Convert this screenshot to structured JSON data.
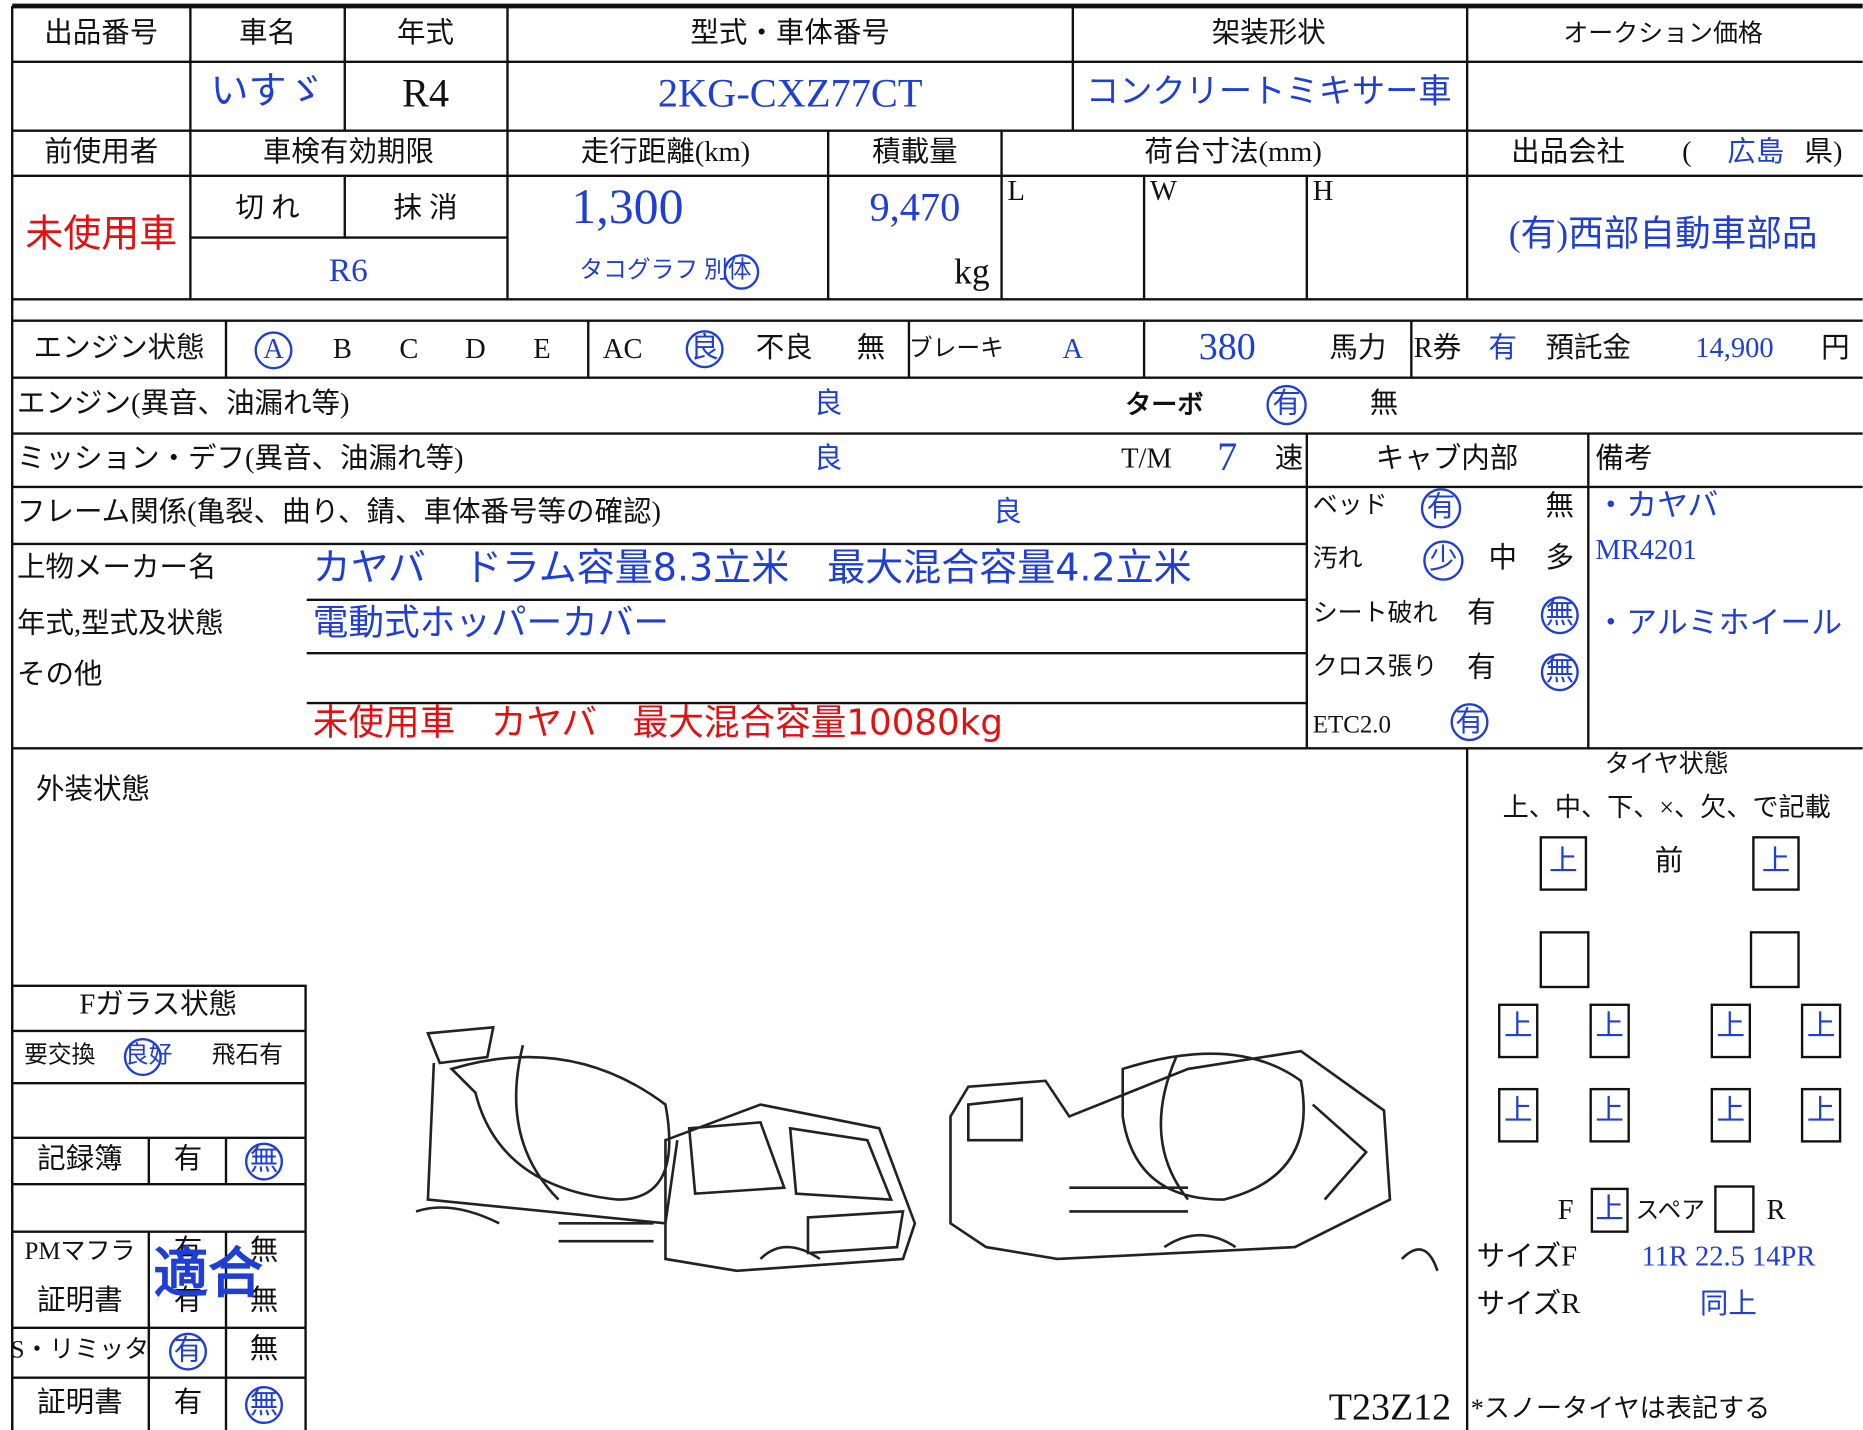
{
  "header": {
    "lot_no": "出品番号",
    "maker": "車名",
    "year": "年式",
    "model_chassis": "型式・車体番号",
    "body_type": "架装形状",
    "auction_price": "オークション価格"
  },
  "vehicle": {
    "maker": "いすゞ",
    "year": "R4",
    "model": "2KG-CXZ77CT",
    "body_type": "コンクリートミキサー車"
  },
  "row3": {
    "prev_user": "前使用者",
    "inspection": "車検有効期限",
    "mileage": "走行距離(km)",
    "load": "積載量",
    "bed_size": "荷台寸法(mm)",
    "seller": "出品会社",
    "paren_open": "(",
    "prefecture": "広島",
    "pref_suffix": "県)"
  },
  "row4": {
    "prev_user": "未使用車",
    "expired": "切 れ",
    "cancelled": "抹 消",
    "inspection_date": "R6",
    "mileage": "1,300",
    "tacho": "タコグラフ 別体",
    "load": "9,470",
    "load_unit": "kg",
    "L": "L",
    "W": "W",
    "H": "H",
    "seller": "(有)西部自動車部品"
  },
  "engine": {
    "label": "エンジン状態",
    "grades": [
      "A",
      "B",
      "C",
      "D",
      "E"
    ],
    "ac": "AC",
    "ac_good": "良",
    "ac_bad": "不良",
    "ac_none": "無",
    "brake": "ブレーキ",
    "brake_value": "A",
    "hp": "380",
    "hp_unit": "馬力",
    "r_ticket": "R券",
    "r_ticket_value": "有",
    "deposit": "預託金",
    "deposit_value": "14,900",
    "deposit_unit": "円"
  },
  "checks": {
    "engine_label": "エンジン(異音、油漏れ等)",
    "engine_value": "良",
    "turbo": "ターボ",
    "turbo_yes": "有",
    "turbo_no": "無",
    "mission_label": "ミッション・デフ(異音、油漏れ等)",
    "mission_value": "良",
    "tm": "T/M",
    "tm_value": "7",
    "tm_unit": "速",
    "frame_label": "フレーム関係(亀裂、曲り、錆、車体番号等の確認)",
    "frame_value": "良"
  },
  "body": {
    "maker_label": "上物メーカー名",
    "spec_label": "年式,型式及状態",
    "other_label": "その他",
    "line1": "カヤバ　ドラム容量8.3立米　最大混合容量4.2立米",
    "line2": "電動式ホッパーカバー",
    "line4": "未使用車　カヤバ　最大混合容量10080kg"
  },
  "cab": {
    "title": "キャブ内部",
    "bed": "ベッド",
    "bed_yes": "有",
    "bed_no": "無",
    "dirt": "汚れ",
    "dirt_low": "少",
    "dirt_mid": "中",
    "dirt_high": "多",
    "seat": "シート破れ",
    "seat_yes": "有",
    "seat_no": "無",
    "cloth": "クロス張り",
    "cloth_yes": "有",
    "cloth_no": "無",
    "etc": "ETC2.0",
    "etc_yes": "有"
  },
  "remarks": {
    "title": "備考",
    "line1": "・カヤバ",
    "line2": "MR4201",
    "line3": "・アルミホイール"
  },
  "exterior": {
    "title": "外装状態",
    "sheet_code": "T23Z12"
  },
  "glass": {
    "title": "Fガラス状態",
    "replace": "要交換",
    "good": "良好",
    "chip": "飛石有",
    "record": "記録簿",
    "record_yes": "有",
    "record_no": "無",
    "pm": "PMマフラ",
    "pm_yes": "有",
    "pm_no": "無",
    "pm_stamp": "適合",
    "cert1": "証明書",
    "cert1_yes": "有",
    "cert1_no": "無",
    "limiter": "S・リミッタ",
    "limiter_yes": "有",
    "limiter_no": "無",
    "cert2": "証明書",
    "cert2_yes": "有",
    "cert2_no": "無"
  },
  "tires": {
    "title": "タイヤ状態",
    "instruction": "上、中、下、×、欠、で記載",
    "front": "前",
    "front_left": "上",
    "front_right": "上",
    "row2": [
      "上",
      "上",
      "上",
      "上"
    ],
    "row3": [
      "上",
      "上",
      "上",
      "上"
    ],
    "f": "F",
    "spare_f": "上",
    "spare": "スペア",
    "r": "R",
    "size_f_label": "サイズF",
    "size_f": "11R 22.5 14PR",
    "size_r_label": "サイズR",
    "size_r": "同上",
    "snow_note": "*スノータイヤは表記する"
  }
}
